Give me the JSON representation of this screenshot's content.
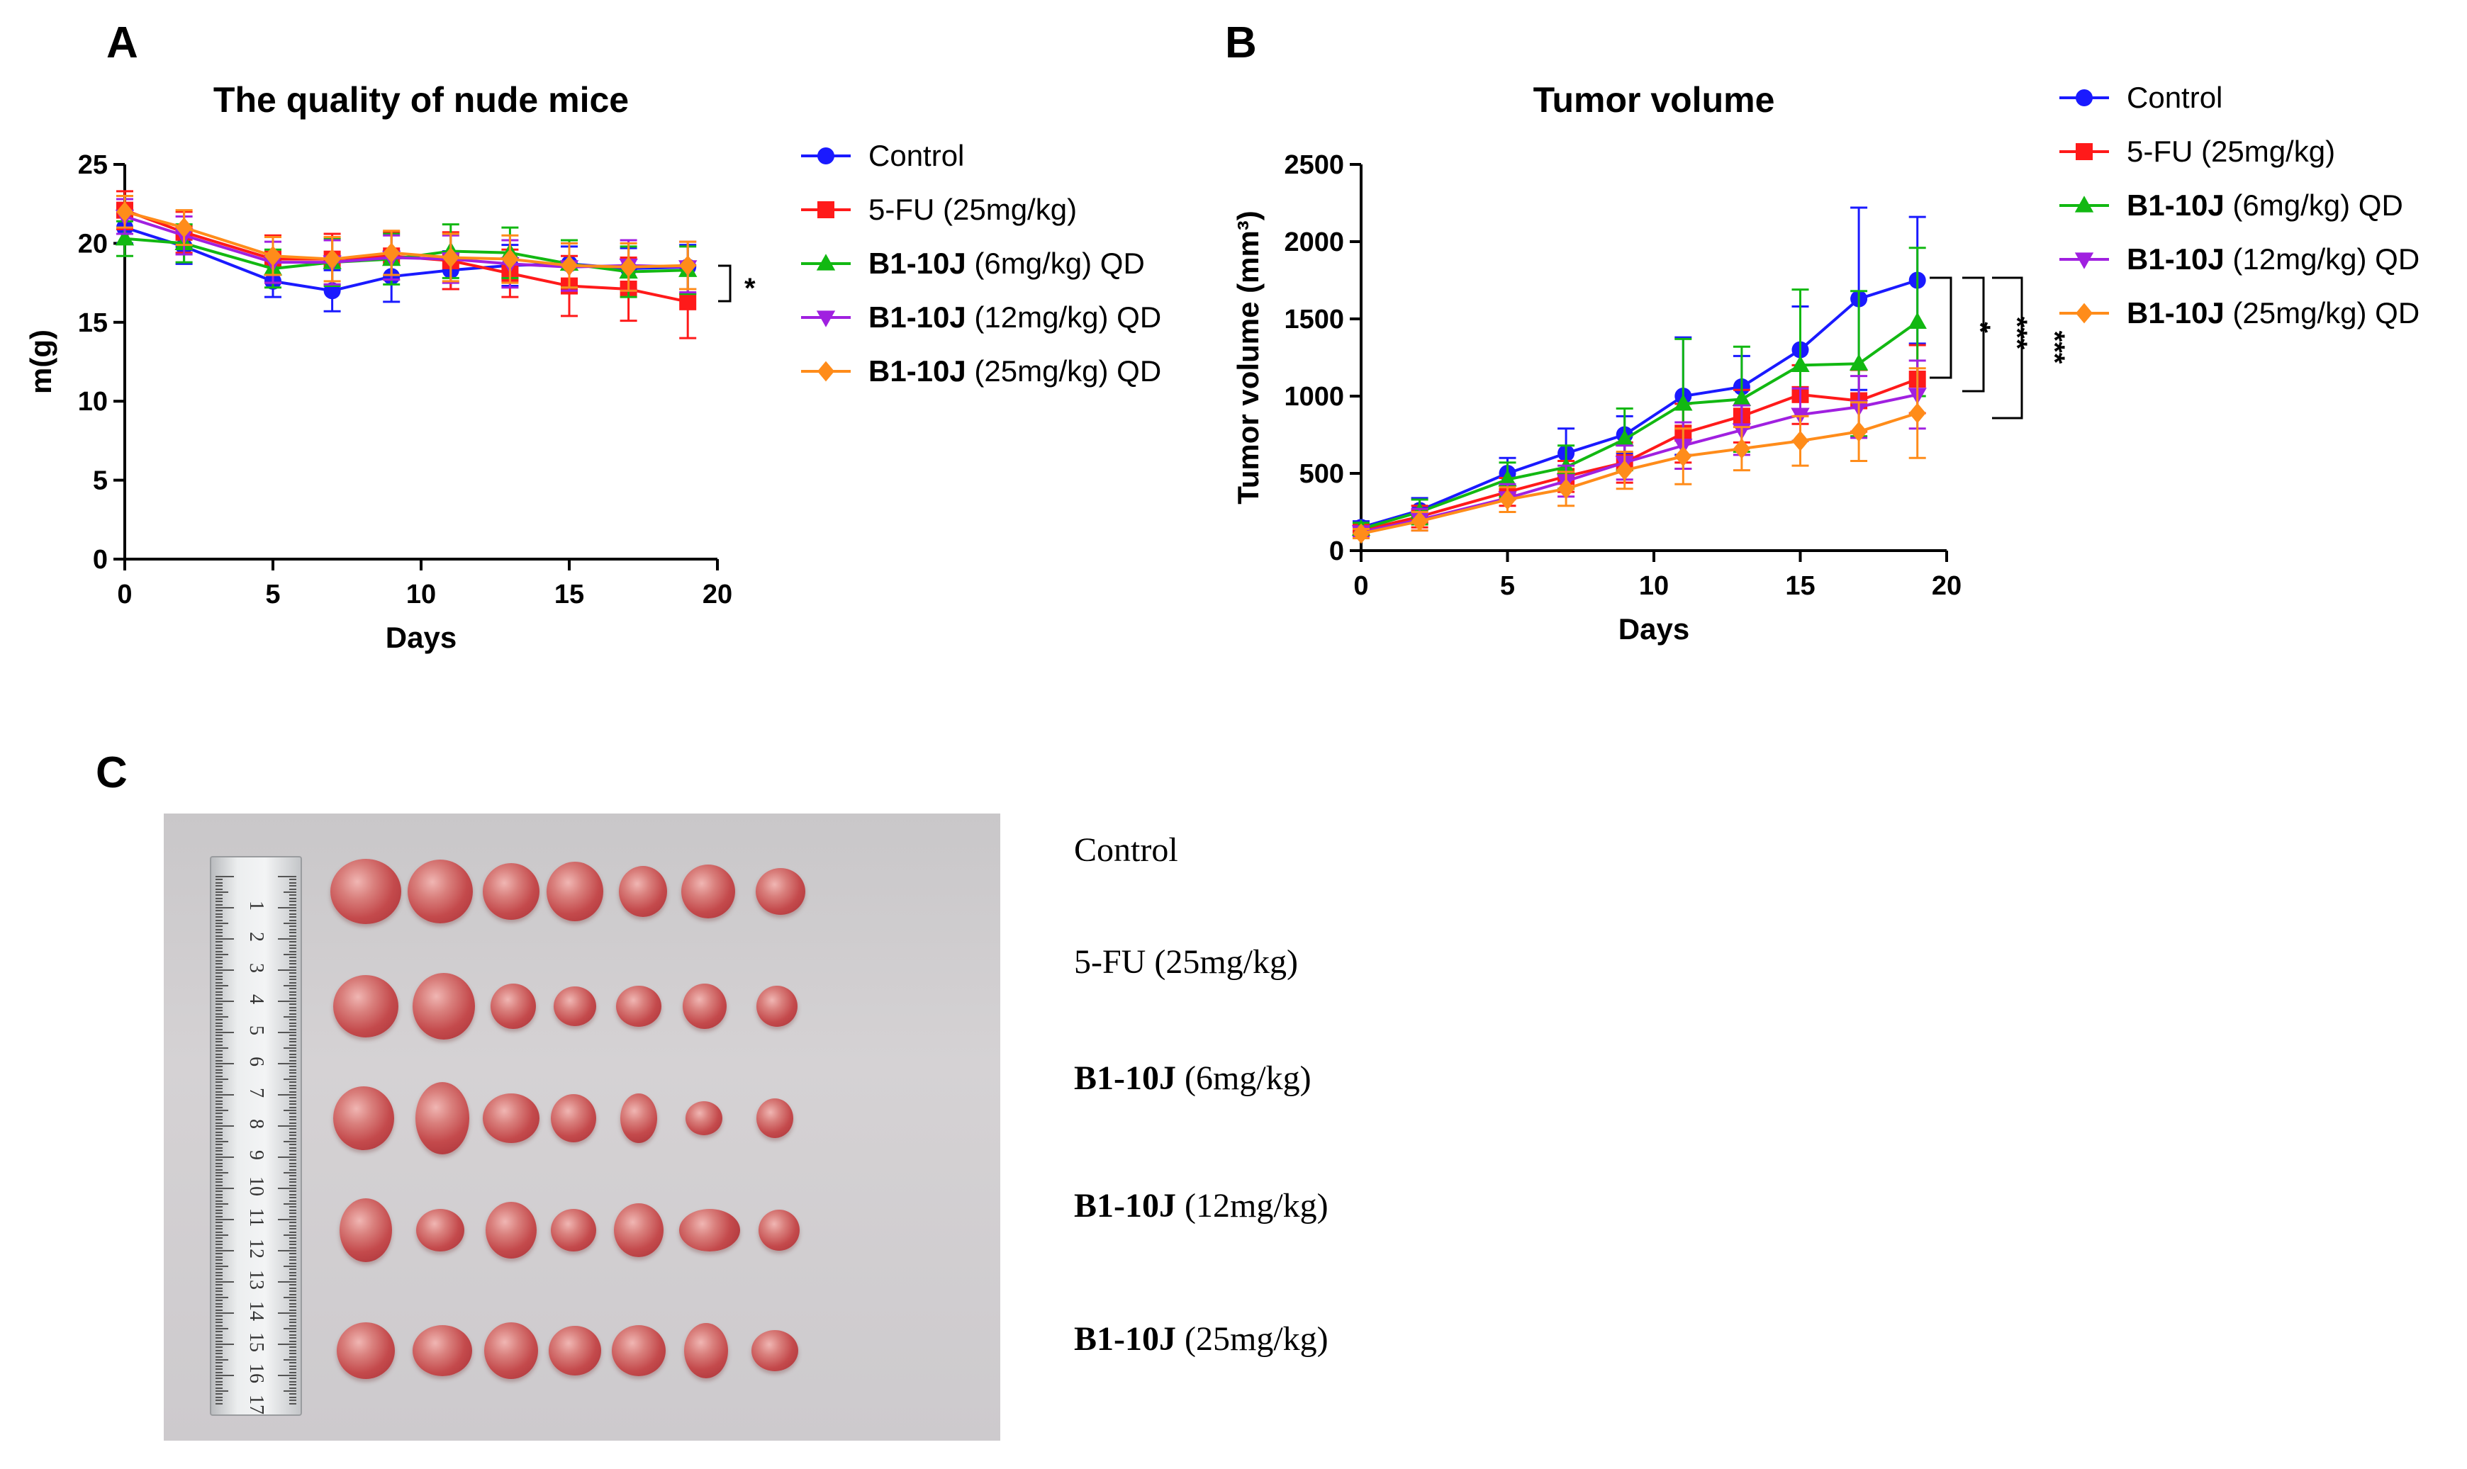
{
  "panels": {
    "a": {
      "letter": "A"
    },
    "b": {
      "letter": "B"
    },
    "c": {
      "letter": "C"
    }
  },
  "chart_data": [
    {
      "id": "A",
      "type": "line",
      "title": "The quality of nude mice",
      "xlabel": "Days",
      "ylabel": "m(g)",
      "xlim": [
        0,
        20
      ],
      "ylim": [
        0,
        25
      ],
      "xticks": [
        0,
        5,
        10,
        15,
        20
      ],
      "yticks": [
        0,
        5,
        10,
        15,
        20,
        25
      ],
      "x": [
        0,
        2,
        5,
        7,
        9,
        11,
        13,
        15,
        17,
        19
      ],
      "series": [
        {
          "name": "Control",
          "bold": "",
          "rest": "Control",
          "color": "#1a1aff",
          "marker": "circle",
          "values": [
            21.0,
            19.8,
            17.6,
            17.0,
            17.9,
            18.3,
            18.6,
            18.7,
            18.4,
            18.5
          ],
          "err": [
            1.0,
            1.1,
            1.0,
            1.3,
            1.6,
            1.2,
            1.3,
            1.1,
            1.3,
            1.4
          ]
        },
        {
          "name": "5-FU (25mg/kg)",
          "bold": "",
          "rest": "5-FU (25mg/kg)",
          "color": "#ff1a1a",
          "marker": "square",
          "values": [
            22.1,
            20.7,
            19.0,
            19.0,
            19.2,
            18.9,
            18.1,
            17.3,
            17.1,
            16.3
          ],
          "err": [
            1.2,
            1.3,
            1.5,
            1.6,
            1.5,
            1.8,
            1.5,
            1.9,
            2.0,
            2.3
          ]
        },
        {
          "name": "B1-10J (6mg/kg) QD",
          "bold": "B1-10J",
          "rest": " (6mg/kg) QD",
          "color": "#12b812",
          "marker": "triangle-up",
          "values": [
            20.3,
            20.0,
            18.4,
            18.8,
            19.0,
            19.5,
            19.4,
            18.7,
            18.2,
            18.3
          ],
          "err": [
            1.1,
            1.2,
            1.2,
            1.5,
            1.6,
            1.7,
            1.6,
            1.5,
            1.6,
            1.5
          ]
        },
        {
          "name": "B1-10J (12mg/kg) QD",
          "bold": "B1-10J",
          "rest": " (12mg/kg) QD",
          "color": "#a020e0",
          "marker": "triangle-down",
          "values": [
            21.7,
            20.5,
            18.8,
            18.8,
            19.1,
            19.0,
            18.7,
            18.5,
            18.6,
            18.5
          ],
          "err": [
            1.1,
            1.2,
            1.3,
            1.4,
            1.4,
            1.5,
            1.5,
            1.5,
            1.6,
            1.6
          ]
        },
        {
          "name": "B1-10J (25mg/kg) QD",
          "bold": "B1-10J",
          "rest": " (25mg/kg) QD",
          "color": "#ff8c1a",
          "marker": "diamond",
          "values": [
            22.0,
            21.0,
            19.2,
            19.0,
            19.4,
            19.1,
            19.0,
            18.6,
            18.5,
            18.6
          ],
          "err": [
            1.0,
            1.1,
            1.2,
            1.4,
            1.4,
            1.5,
            1.5,
            1.4,
            1.5,
            1.5
          ]
        }
      ],
      "significance": [
        {
          "label": "*"
        }
      ]
    },
    {
      "id": "B",
      "type": "line",
      "title": "Tumor volume",
      "xlabel": "Days",
      "ylabel": "Tumor volume (mm³)",
      "xlim": [
        0,
        20
      ],
      "ylim": [
        0,
        2500
      ],
      "xticks": [
        0,
        5,
        10,
        15,
        20
      ],
      "yticks": [
        0,
        500,
        1000,
        1500,
        2000,
        2500
      ],
      "x": [
        0,
        2,
        5,
        7,
        9,
        11,
        13,
        15,
        17,
        19
      ],
      "series": [
        {
          "name": "Control",
          "bold": "",
          "rest": "Control",
          "color": "#1a1aff",
          "marker": "circle",
          "values": [
            150,
            260,
            500,
            630,
            750,
            1000,
            1060,
            1300,
            1630,
            1750
          ],
          "err": [
            40,
            80,
            100,
            160,
            120,
            380,
            200,
            280,
            590,
            410
          ]
        },
        {
          "name": "5-FU (25mg/kg)",
          "bold": "",
          "rest": "5-FU (25mg/kg)",
          "color": "#ff1a1a",
          "marker": "square",
          "values": [
            130,
            220,
            380,
            480,
            570,
            760,
            870,
            1010,
            970,
            1110
          ],
          "err": [
            30,
            70,
            90,
            100,
            130,
            190,
            170,
            190,
            200,
            220
          ]
        },
        {
          "name": "B1-10J (6mg/kg) QD",
          "bold": "B1-10J",
          "rest": " (6mg/kg) QD",
          "color": "#12b812",
          "marker": "triangle-up",
          "values": [
            140,
            250,
            460,
            540,
            720,
            950,
            980,
            1200,
            1210,
            1480
          ],
          "err": [
            40,
            80,
            110,
            140,
            200,
            420,
            340,
            490,
            470,
            480
          ]
        },
        {
          "name": "B1-10J (12mg/kg) QD",
          "bold": "B1-10J",
          "rest": " (12mg/kg) QD",
          "color": "#a020e0",
          "marker": "triangle-down",
          "values": [
            120,
            200,
            340,
            450,
            570,
            680,
            780,
            880,
            930,
            1010
          ],
          "err": [
            30,
            70,
            90,
            100,
            110,
            150,
            160,
            170,
            200,
            220
          ]
        },
        {
          "name": "B1-10J (25mg/kg) QD",
          "bold": "B1-10J",
          "rest": " (25mg/kg) QD",
          "color": "#ff8c1a",
          "marker": "diamond",
          "values": [
            110,
            190,
            330,
            400,
            520,
            610,
            660,
            710,
            770,
            890
          ],
          "err": [
            30,
            60,
            80,
            110,
            120,
            180,
            140,
            160,
            190,
            290
          ]
        }
      ],
      "significance": [
        {
          "label": "*"
        },
        {
          "label": "***"
        },
        {
          "label": "***"
        }
      ]
    }
  ],
  "photo_labels": [
    {
      "bold": "",
      "rest": "Control"
    },
    {
      "bold": "",
      "rest": "5-FU (25mg/kg)"
    },
    {
      "bold": "B1-10J",
      "rest": " (6mg/kg)"
    },
    {
      "bold": "B1-10J",
      "rest": " (12mg/kg)"
    },
    {
      "bold": "B1-10J",
      "rest": " (25mg/kg)"
    }
  ],
  "ruler_numbers": [
    "1",
    "2",
    "3",
    "4",
    "5",
    "6",
    "7",
    "8",
    "9",
    "10",
    "11",
    "12",
    "13",
    "14",
    "15",
    "16",
    "17"
  ]
}
